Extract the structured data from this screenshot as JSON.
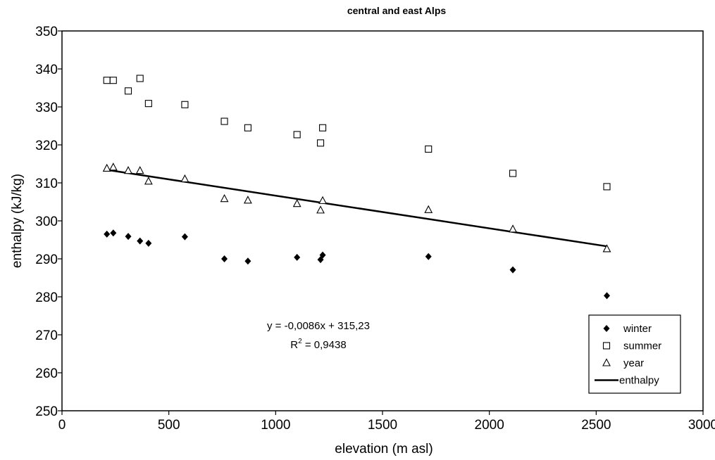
{
  "chart_data": {
    "type": "scatter",
    "title": "central and east Alps",
    "xlabel": "elevation (m asl)",
    "ylabel": "enthalpy (kJ/kg)",
    "xlim": [
      0,
      3000
    ],
    "ylim": [
      250,
      350
    ],
    "x_ticks": [
      0,
      500,
      1000,
      1500,
      2000,
      2500,
      3000
    ],
    "y_ticks": [
      250,
      260,
      270,
      280,
      290,
      300,
      310,
      320,
      330,
      340,
      350
    ],
    "grid": false,
    "legend_position": "bottom-right",
    "series": [
      {
        "name": "winter",
        "marker": "diamond-filled",
        "x": [
          210,
          240,
          310,
          365,
          405,
          575,
          760,
          870,
          1100,
          1210,
          1220,
          1715,
          2110,
          2550
        ],
        "y": [
          296.5,
          296.8,
          295.9,
          294.7,
          294.1,
          295.8,
          290.0,
          289.4,
          290.4,
          289.8,
          291.0,
          290.6,
          287.1,
          280.3
        ]
      },
      {
        "name": "summer",
        "marker": "square-open",
        "x": [
          210,
          240,
          310,
          365,
          405,
          575,
          760,
          870,
          1100,
          1210,
          1220,
          1715,
          2110,
          2550
        ],
        "y": [
          337.0,
          337.0,
          334.2,
          337.5,
          330.9,
          330.6,
          326.2,
          324.5,
          322.7,
          320.5,
          324.5,
          318.9,
          312.5,
          309.0
        ]
      },
      {
        "name": "year",
        "marker": "triangle-open",
        "x": [
          210,
          240,
          310,
          365,
          405,
          575,
          760,
          870,
          1100,
          1210,
          1220,
          1715,
          2110,
          2550
        ],
        "y": [
          313.8,
          314.1,
          313.2,
          313.2,
          310.4,
          311.0,
          305.8,
          305.4,
          304.5,
          302.8,
          305.3,
          302.9,
          297.8,
          292.6
        ]
      },
      {
        "name": "enthalpy",
        "type": "line",
        "x": [
          200,
          2550
        ],
        "y": [
          313.51,
          293.3
        ]
      }
    ],
    "annotations": {
      "equation": "y = -0,0086x + 315,23",
      "r2_prefix": "R",
      "r2_sup": "2",
      "r2_value": " = 0,9438"
    }
  }
}
